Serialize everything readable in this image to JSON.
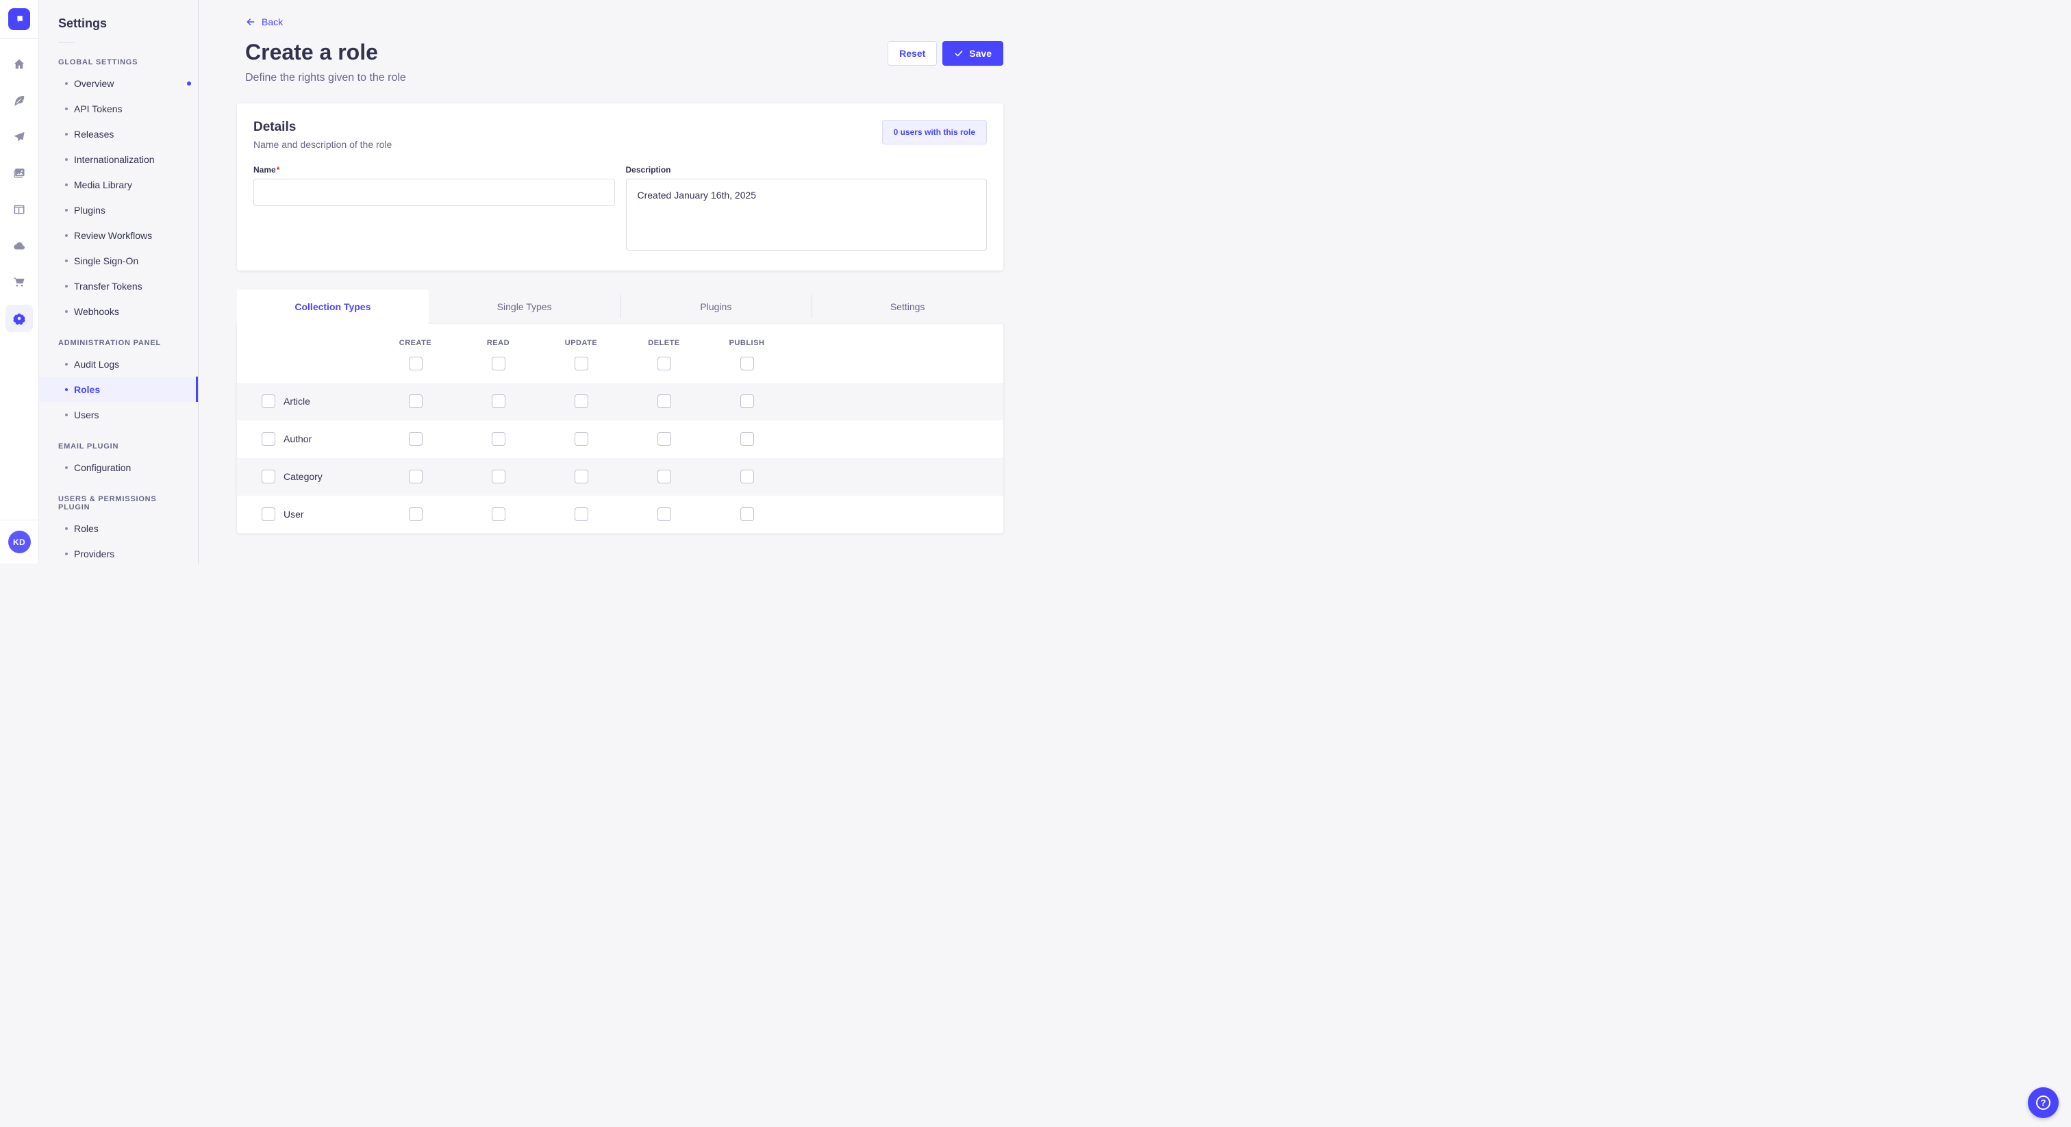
{
  "colors": {
    "accent": "#4945ff",
    "accent_light": "#f0f0ff",
    "accent_border": "#d9d8ff",
    "danger": "#d02b20",
    "neutral_bg": "#f6f6f9",
    "text_dark": "#32324d",
    "text_muted": "#666687"
  },
  "icon_rail": {
    "logo_icon": "strapi-logo",
    "icons": [
      {
        "name": "home-icon",
        "active": false
      },
      {
        "name": "feather-icon",
        "active": false
      },
      {
        "name": "paper-plane-icon",
        "active": false
      },
      {
        "name": "media-images-icon",
        "active": false
      },
      {
        "name": "layout-icon",
        "active": false
      },
      {
        "name": "cloud-icon",
        "active": false
      },
      {
        "name": "cart-icon",
        "active": false
      },
      {
        "name": "gear-icon",
        "active": true
      }
    ],
    "avatar_initials": "KD"
  },
  "sidebar": {
    "title": "Settings",
    "sections": [
      {
        "label": "GLOBAL SETTINGS",
        "items": [
          {
            "label": "Overview",
            "active": false,
            "notification": true
          },
          {
            "label": "API Tokens",
            "active": false,
            "notification": false
          },
          {
            "label": "Releases",
            "active": false,
            "notification": false
          },
          {
            "label": "Internationalization",
            "active": false,
            "notification": false
          },
          {
            "label": "Media Library",
            "active": false,
            "notification": false
          },
          {
            "label": "Plugins",
            "active": false,
            "notification": false
          },
          {
            "label": "Review Workflows",
            "active": false,
            "notification": false
          },
          {
            "label": "Single Sign-On",
            "active": false,
            "notification": false
          },
          {
            "label": "Transfer Tokens",
            "active": false,
            "notification": false
          },
          {
            "label": "Webhooks",
            "active": false,
            "notification": false
          }
        ]
      },
      {
        "label": "ADMINISTRATION PANEL",
        "items": [
          {
            "label": "Audit Logs",
            "active": false,
            "notification": false
          },
          {
            "label": "Roles",
            "active": true,
            "notification": false
          },
          {
            "label": "Users",
            "active": false,
            "notification": false
          }
        ]
      },
      {
        "label": "EMAIL PLUGIN",
        "items": [
          {
            "label": "Configuration",
            "active": false,
            "notification": false
          }
        ]
      },
      {
        "label": "USERS & PERMISSIONS PLUGIN",
        "items": [
          {
            "label": "Roles",
            "active": false,
            "notification": false
          },
          {
            "label": "Providers",
            "active": false,
            "notification": false
          }
        ]
      }
    ]
  },
  "header": {
    "back_label": "Back",
    "title": "Create a role",
    "subtitle": "Define the rights given to the role",
    "reset_label": "Reset",
    "save_label": "Save"
  },
  "details_card": {
    "title": "Details",
    "subtitle": "Name and description of the role",
    "users_badge": "0 users with this role",
    "name_label": "Name",
    "name_required_mark": "*",
    "name_value": "",
    "description_label": "Description",
    "description_value": "Created January 16th, 2025"
  },
  "permissions": {
    "tabs": [
      {
        "label": "Collection Types",
        "active": true
      },
      {
        "label": "Single Types",
        "active": false
      },
      {
        "label": "Plugins",
        "active": false
      },
      {
        "label": "Settings",
        "active": false
      }
    ],
    "columns": [
      "CREATE",
      "READ",
      "UPDATE",
      "DELETE",
      "PUBLISH"
    ],
    "select_all": [
      false,
      false,
      false,
      false,
      false
    ],
    "rows": [
      {
        "label": "Article",
        "row_checked": false,
        "checks": [
          false,
          false,
          false,
          false,
          false
        ]
      },
      {
        "label": "Author",
        "row_checked": false,
        "checks": [
          false,
          false,
          false,
          false,
          false
        ]
      },
      {
        "label": "Category",
        "row_checked": false,
        "checks": [
          false,
          false,
          false,
          false,
          false
        ]
      },
      {
        "label": "User",
        "row_checked": false,
        "checks": [
          false,
          false,
          false,
          false,
          false
        ]
      }
    ]
  },
  "help": {
    "icon": "question-mark",
    "glyph": "?"
  }
}
